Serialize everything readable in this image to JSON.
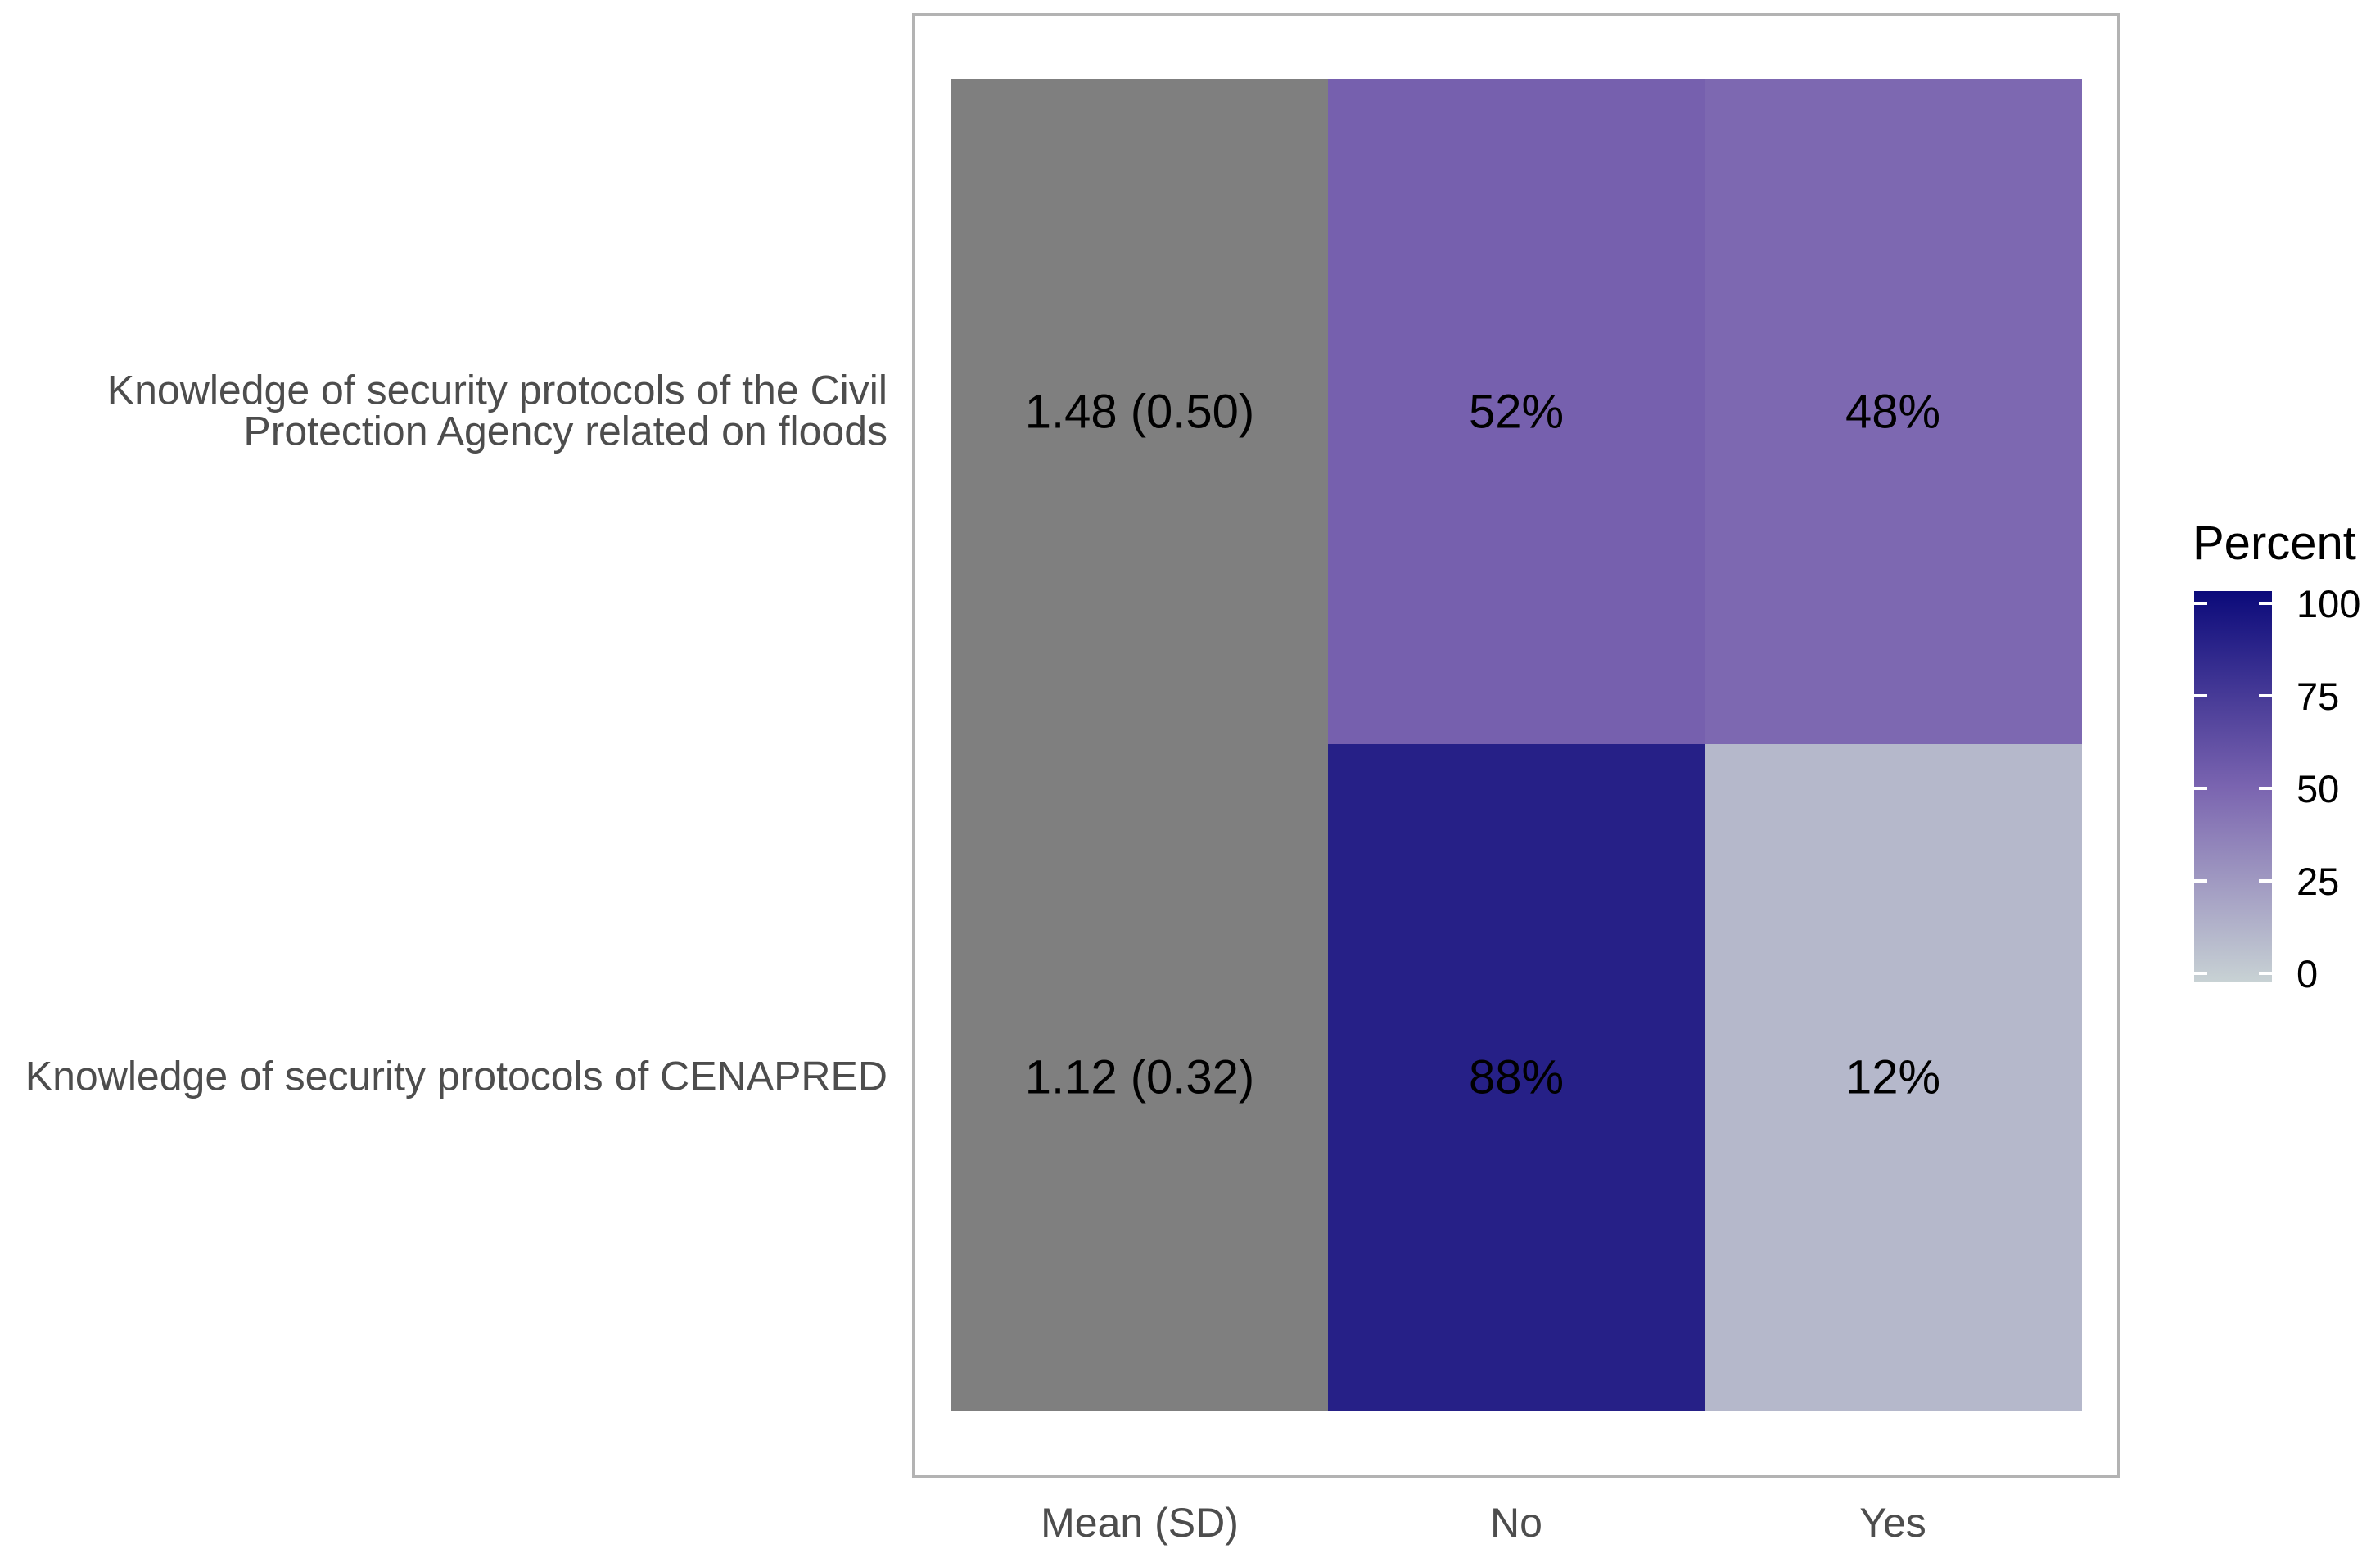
{
  "chart_data": {
    "type": "heatmap",
    "title": "",
    "xlabel": "",
    "ylabel": "",
    "columns": [
      "Mean (SD)",
      "No",
      "Yes"
    ],
    "rows": [
      {
        "label_lines": [
          "Knowledge of security protocols of the Civil",
          "Protection Agency related on floods"
        ],
        "mean_sd": "1.48 (0.50)",
        "cells": [
          {
            "column": "No",
            "value": 52,
            "label": "52%"
          },
          {
            "column": "Yes",
            "value": 48,
            "label": "48%"
          }
        ]
      },
      {
        "label_lines": [
          "Knowledge of security protocols of CENAPRED"
        ],
        "mean_sd": "1.12 (0.32)",
        "cells": [
          {
            "column": "No",
            "value": 88,
            "label": "88%"
          },
          {
            "column": "Yes",
            "value": 12,
            "label": "12%"
          }
        ]
      }
    ],
    "legend": {
      "title": "Percent",
      "ticks": [
        0,
        25,
        50,
        75,
        100
      ],
      "range": [
        0,
        100
      ],
      "position": "right"
    },
    "colors": {
      "low": "#c8d2d4",
      "high": "#0b0a7a",
      "mean_column": "#7f7f7f",
      "panel_border": "#b3b3b3"
    },
    "grid": false
  }
}
